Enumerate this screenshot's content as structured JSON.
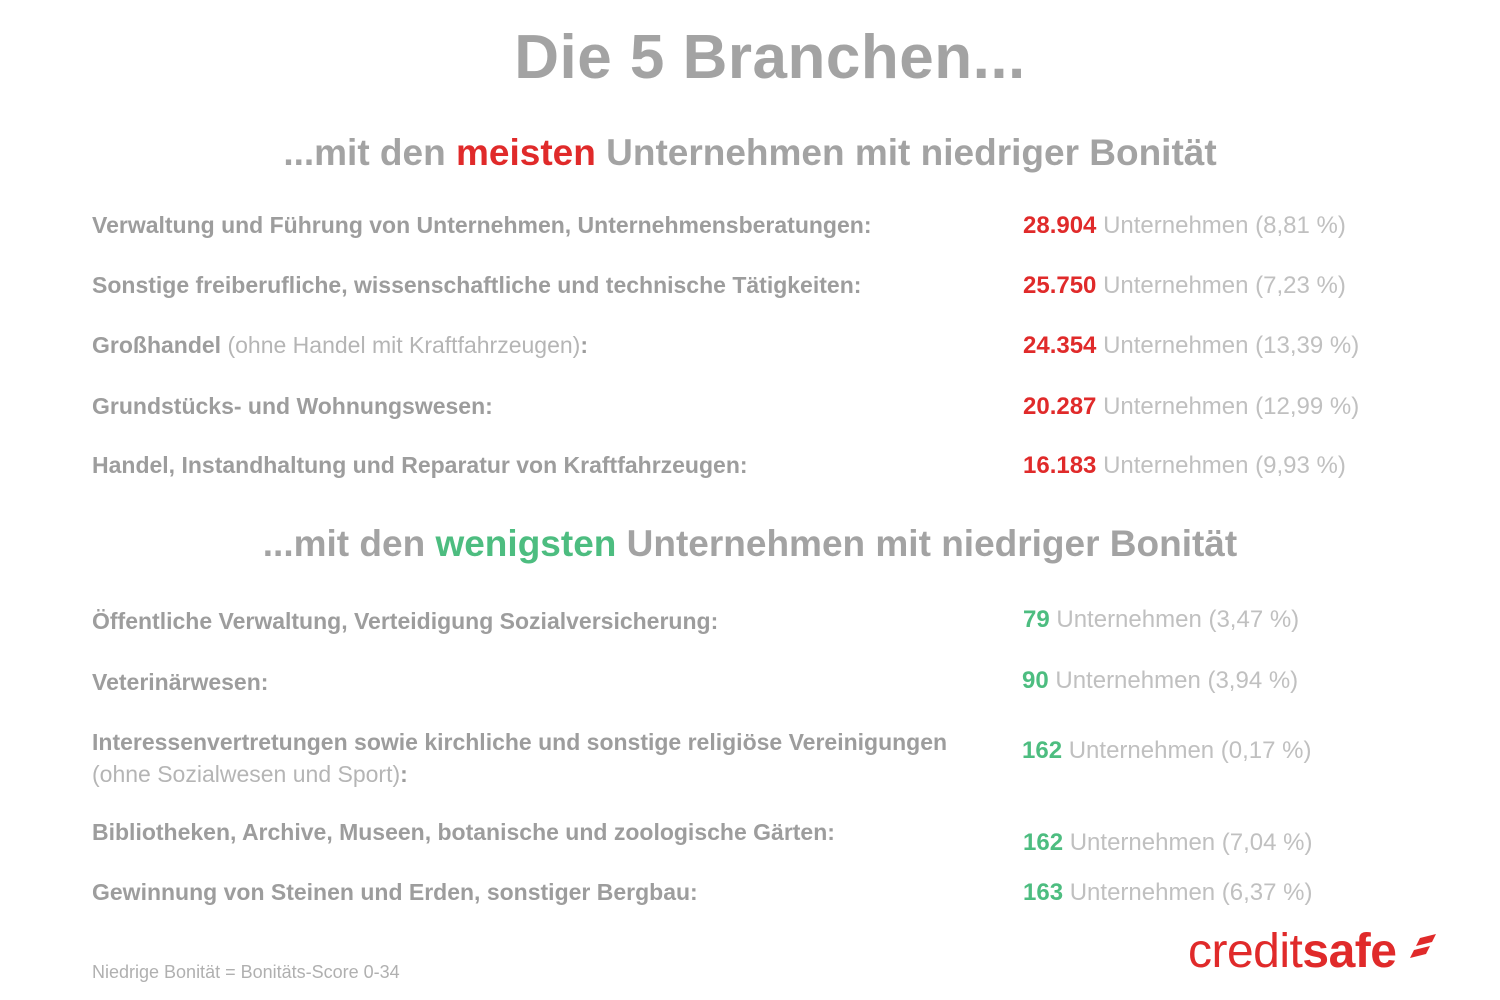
{
  "title": "Die 5 Branchen...",
  "most": {
    "prefix": "...mit den ",
    "highlight": "meisten",
    "suffix": " Unternehmen mit niedriger Bonität",
    "highlight_color": "#e02a2a",
    "rows": [
      {
        "label": "Verwaltung und Führung von Unternehmen, Unternehmensberatungen:",
        "number": "28.904",
        "text": " Unternehmen (8,81 %)"
      },
      {
        "label": "Sonstige freiberufliche, wissenschaftliche und technische Tätigkeiten:",
        "number": "25.750",
        "text": " Unternehmen (7,23 %)"
      },
      {
        "label": "Großhandel",
        "label_paren": " (ohne Handel mit Kraftfahrzeugen)",
        "label_end": ":",
        "number": "24.354",
        "text": " Unternehmen (13,39 %)"
      },
      {
        "label": "Grundstücks- und Wohnungswesen:",
        "number": "20.287",
        "text": " Unternehmen (12,99 %)"
      },
      {
        "label": "Handel, Instandhaltung und Reparatur von Kraftfahrzeugen:",
        "number": "16.183",
        "text": " Unternehmen (9,93 %)"
      }
    ]
  },
  "least": {
    "prefix": "...mit den ",
    "highlight": "wenigsten",
    "suffix": " Unternehmen mit niedriger Bonität",
    "highlight_color": "#4dbd80",
    "rows": [
      {
        "label": "Öffentliche Verwaltung, Verteidigung Sozialversicherung:",
        "number": "79",
        "text": " Unternehmen (3,47 %)"
      },
      {
        "label": "Veterinärwesen:",
        "number": "90",
        "text": " Unternehmen (3,94 %)"
      },
      {
        "label": "Interessenvertretungen sowie kirchliche und sonstige religiöse Vereinigungen",
        "label_line2": "(ohne Sozialwesen und Sport)",
        "label_line2_end": ":",
        "number": "162",
        "text": " Unternehmen (0,17 %)"
      },
      {
        "label": "Bibliotheken, Archive, Museen, botanische und zoologische Gärten:",
        "number": "162",
        "text": " Unternehmen (7,04 %)"
      },
      {
        "label": "Gewinnung von Steinen und Erden, sonstiger Bergbau:",
        "number": "163",
        "text": " Unternehmen (6,37 %)"
      }
    ]
  },
  "footnote": "Niedrige Bonität = Bonitäts-Score 0-34",
  "logo": {
    "part1": "credit",
    "part2": "safe",
    "color": "#e02a2a"
  }
}
